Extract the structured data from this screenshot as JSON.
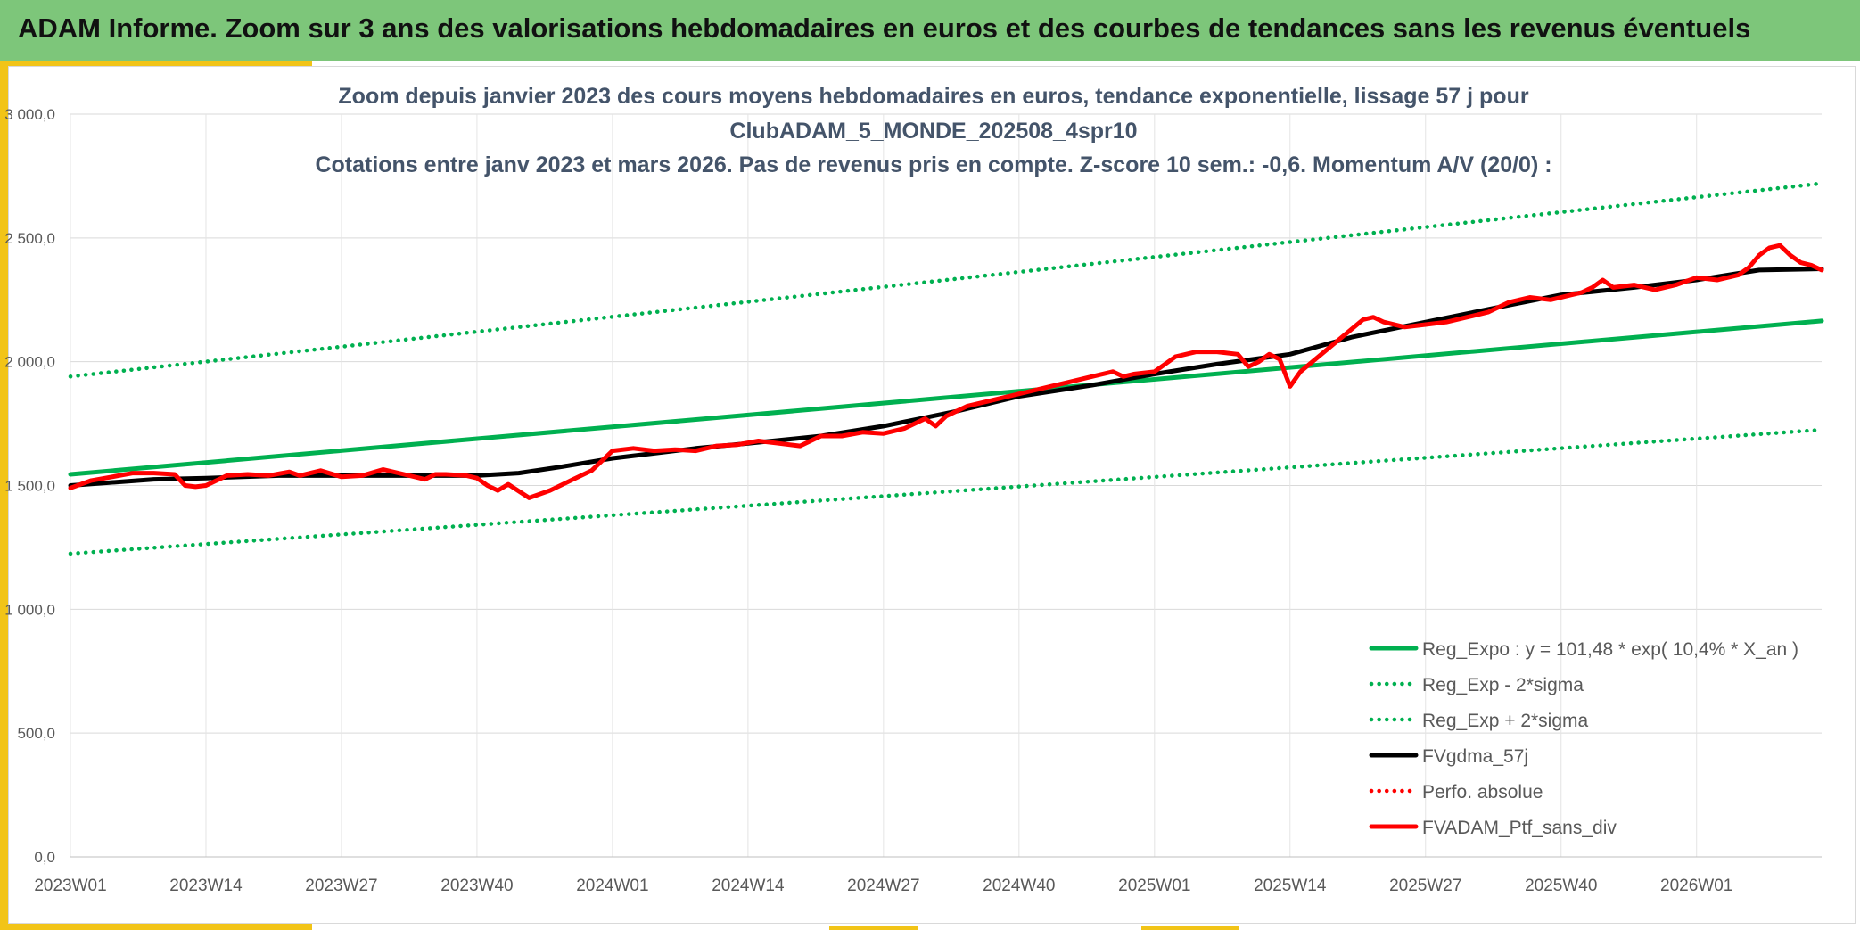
{
  "banner": {
    "title": "ADAM Informe. Zoom sur 3 ans des valorisations hebdomadaires en euros et des courbes de tendances sans les revenus éventuels"
  },
  "chart_data": {
    "type": "line",
    "title_lines": [
      "Zoom depuis janvier 2023 des cours moyens hebdomadaires en euros, tendance exponentielle, lissage 57 j pour",
      "ClubADAM_5_MONDE_202508_4spr10",
      "Cotations entre janv 2023 et mars 2026. Pas de revenus pris en compte. Z-score 10 sem.: -0,6. Momentum A/V (20/0) :"
    ],
    "ylim": [
      0,
      3000
    ],
    "y_ticks": [
      0,
      500,
      1000,
      1500,
      2000,
      2500,
      3000
    ],
    "y_tick_labels": [
      "0,0",
      "500,0",
      "1 000,0",
      "1 500,0",
      "2 000,0",
      "2 500,0",
      "3 000,0"
    ],
    "x_tick_index": [
      0,
      13,
      26,
      39,
      52,
      65,
      78,
      91,
      104,
      117,
      130,
      143,
      156
    ],
    "x_tick_labels": [
      "2023W01",
      "2023W14",
      "2023W27",
      "2023W40",
      "2024W01",
      "2024W14",
      "2024W27",
      "2024W40",
      "2025W01",
      "2025W14",
      "2025W27",
      "2025W40",
      "2026W01"
    ],
    "n_weeks": 169,
    "series": [
      {
        "name": "Reg_Expo : y = 101,48 * exp( 10,4% *  X_an )",
        "color": "#00b050",
        "style": "solid",
        "x": [
          0,
          168
        ],
        "values": [
          1545,
          2165
        ]
      },
      {
        "name": "Reg_Exp - 2*sigma",
        "color": "#00b050",
        "style": "dotted",
        "x": [
          0,
          168
        ],
        "values": [
          1225,
          1725
        ]
      },
      {
        "name": "Reg_Exp + 2*sigma",
        "color": "#00b050",
        "style": "dotted",
        "x": [
          0,
          168
        ],
        "values": [
          1940,
          2720
        ]
      },
      {
        "name": "FVgdma_57j",
        "color": "#000000",
        "style": "solid",
        "x": [
          0,
          8,
          13,
          20,
          26,
          33,
          39,
          43,
          47,
          52,
          60,
          65,
          72,
          78,
          85,
          91,
          98,
          104,
          110,
          117,
          123,
          130,
          137,
          143,
          150,
          156,
          162,
          168
        ],
        "values": [
          1500,
          1525,
          1530,
          1540,
          1540,
          1540,
          1540,
          1550,
          1575,
          1610,
          1650,
          1670,
          1700,
          1740,
          1800,
          1860,
          1905,
          1950,
          1990,
          2030,
          2100,
          2160,
          2220,
          2270,
          2300,
          2330,
          2370,
          2375
        ]
      },
      {
        "name": "Perfo. absolue",
        "color": "#ff0000",
        "style": "dotted",
        "x": [],
        "values": []
      },
      {
        "name": "FVADAM_Ptf_sans_div",
        "color": "#ff0000",
        "style": "solid",
        "x": [
          0,
          2,
          4,
          6,
          8,
          10,
          11,
          12,
          13,
          15,
          17,
          19,
          21,
          22,
          24,
          26,
          28,
          30,
          32,
          34,
          35,
          36,
          38,
          39,
          40,
          41,
          42,
          44,
          46,
          48,
          50,
          52,
          54,
          56,
          58,
          60,
          62,
          64,
          66,
          68,
          70,
          72,
          74,
          76,
          78,
          80,
          82,
          83,
          84,
          86,
          88,
          90,
          92,
          94,
          96,
          98,
          100,
          101,
          102,
          104,
          106,
          108,
          110,
          112,
          113,
          114,
          115,
          116,
          117,
          118,
          120,
          122,
          124,
          125,
          126,
          128,
          130,
          132,
          134,
          136,
          138,
          140,
          142,
          144,
          145,
          146,
          147,
          148,
          150,
          152,
          154,
          156,
          158,
          160,
          161,
          162,
          163,
          164,
          165,
          166,
          167,
          168
        ],
        "values": [
          1490,
          1520,
          1535,
          1550,
          1550,
          1545,
          1500,
          1495,
          1500,
          1540,
          1545,
          1540,
          1555,
          1540,
          1560,
          1535,
          1540,
          1565,
          1545,
          1525,
          1545,
          1545,
          1540,
          1530,
          1500,
          1480,
          1505,
          1450,
          1480,
          1520,
          1560,
          1640,
          1650,
          1640,
          1645,
          1640,
          1660,
          1665,
          1680,
          1670,
          1660,
          1700,
          1700,
          1715,
          1710,
          1730,
          1770,
          1740,
          1780,
          1820,
          1840,
          1860,
          1880,
          1900,
          1920,
          1940,
          1960,
          1940,
          1950,
          1960,
          2020,
          2040,
          2040,
          2030,
          1980,
          2000,
          2030,
          2010,
          1900,
          1960,
          2030,
          2100,
          2170,
          2180,
          2160,
          2140,
          2150,
          2160,
          2180,
          2200,
          2240,
          2260,
          2250,
          2270,
          2280,
          2300,
          2330,
          2300,
          2310,
          2290,
          2310,
          2340,
          2330,
          2350,
          2380,
          2430,
          2460,
          2470,
          2430,
          2400,
          2390,
          2370
        ]
      }
    ],
    "legend_placement": "bottom-right"
  }
}
